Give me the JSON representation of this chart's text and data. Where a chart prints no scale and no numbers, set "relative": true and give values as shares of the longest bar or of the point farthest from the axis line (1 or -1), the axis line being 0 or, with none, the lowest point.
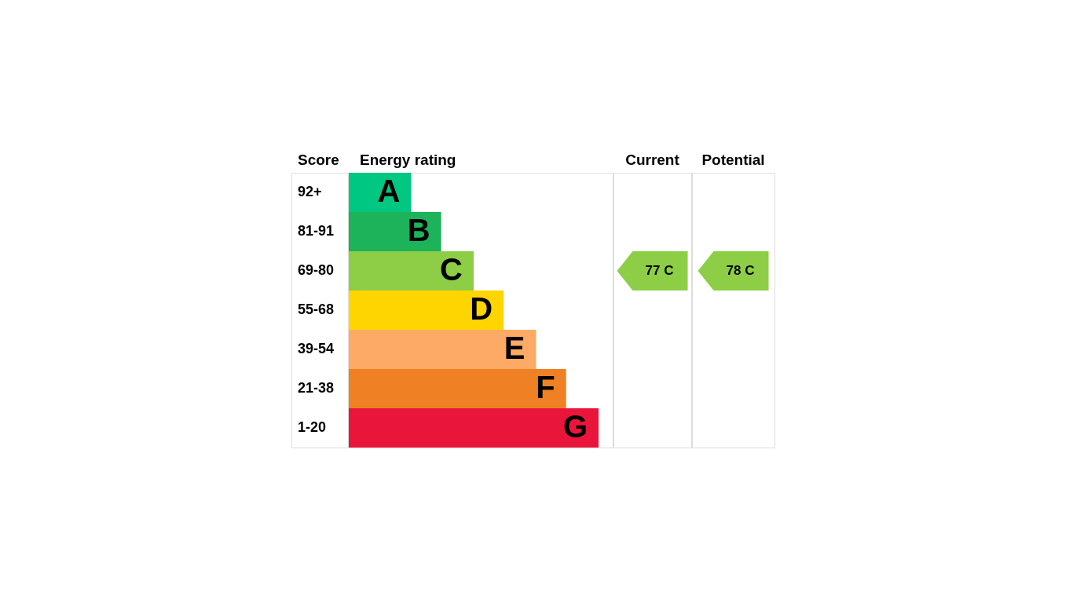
{
  "chart_data": {
    "type": "bar",
    "orientation": "horizontal",
    "relative": true,
    "title": "Energy rating",
    "ylabel": "Score",
    "categories": [
      "92+",
      "81-91",
      "69-80",
      "55-68",
      "39-54",
      "21-38",
      "1-20"
    ],
    "values": [
      0.25,
      0.37,
      0.5,
      0.62,
      0.75,
      0.87,
      1
    ],
    "colors": [
      "#00c781",
      "#1db35a",
      "#8dce46",
      "#ffd500",
      "#fcaa65",
      "#ef8023",
      "#e9153b"
    ],
    "annotations": [
      {
        "text": "A",
        "x": 0.25,
        "y": "92+"
      },
      {
        "text": "B",
        "x": 0.37,
        "y": "81-91"
      },
      {
        "text": "C",
        "x": 0.5,
        "y": "69-80"
      },
      {
        "text": "D",
        "x": 0.62,
        "y": "55-68"
      },
      {
        "text": "E",
        "x": 0.75,
        "y": "39-54"
      },
      {
        "text": "F",
        "x": 0.87,
        "y": "21-38"
      },
      {
        "text": "G",
        "x": 1,
        "y": "1-20"
      },
      "Current",
      "77 C",
      "Potential",
      "78 C"
    ]
  }
}
